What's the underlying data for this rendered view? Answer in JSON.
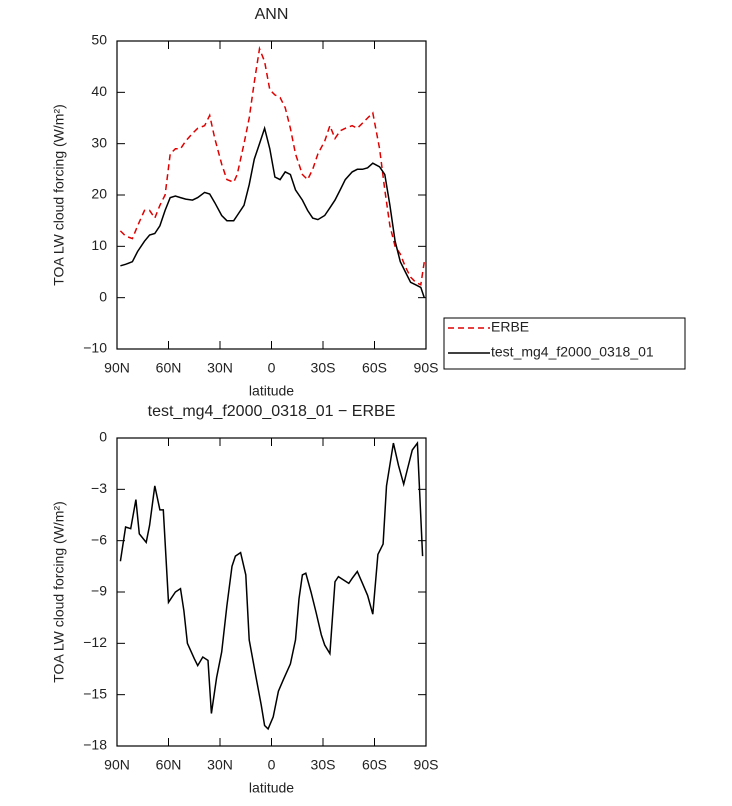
{
  "chart_data": [
    {
      "type": "line",
      "title": "ANN",
      "xlabel": "latitude",
      "ylabel": "TOA LW cloud forcing (W/m²)",
      "x": [
        88,
        85,
        81,
        78,
        74,
        71,
        68,
        65,
        62,
        59,
        56,
        53,
        50,
        46,
        43,
        39,
        36,
        33,
        29,
        26,
        22,
        20,
        16,
        13,
        10,
        7,
        4,
        1,
        -2,
        -5,
        -8,
        -11,
        -14,
        -18,
        -21,
        -24,
        -27,
        -31,
        -34,
        -37,
        -40,
        -43,
        -47,
        -50,
        -53,
        -56,
        -59,
        -63,
        -66,
        -69,
        -72,
        -75,
        -78,
        -81,
        -84,
        -87,
        -89
      ],
      "series": [
        {
          "name": "ERBE",
          "color": "#e00000",
          "line_style": "dashed",
          "values": [
            13,
            12,
            11.5,
            14,
            17,
            17,
            15.5,
            18,
            20,
            28,
            29,
            29,
            30.5,
            32,
            33,
            33.5,
            35.5,
            31,
            26,
            23,
            22.5,
            24,
            30,
            35,
            42,
            48.5,
            46,
            40.5,
            39.5,
            39,
            37,
            33,
            28,
            24,
            23,
            25,
            28,
            30.5,
            33.5,
            31,
            32.5,
            33,
            33.5,
            33,
            34,
            35,
            36,
            29,
            21,
            14,
            10,
            8.5,
            6,
            4,
            3,
            2.5,
            7
          ]
        },
        {
          "name": "test_mg4_f2000_0318_01",
          "color": "#000000",
          "line_style": "solid",
          "values": [
            6.2,
            6.5,
            7,
            9,
            11,
            12.2,
            12.5,
            14,
            17,
            19.5,
            19.8,
            19.5,
            19.2,
            19,
            19.5,
            20.5,
            20.2,
            18.5,
            16,
            15,
            15,
            16,
            18,
            22,
            27,
            30,
            33,
            29,
            23.5,
            23,
            24.5,
            24,
            21,
            19,
            17,
            15.5,
            15.2,
            16,
            17.5,
            19,
            21,
            23,
            24.5,
            25,
            25,
            25.3,
            26.2,
            25.5,
            24,
            18,
            11,
            7,
            5,
            3,
            2.5,
            2,
            0
          ]
        }
      ],
      "xlim": [
        90,
        -90
      ],
      "xticks": [
        {
          "value": 90,
          "label": "90N"
        },
        {
          "value": 60,
          "label": "60N"
        },
        {
          "value": 30,
          "label": "30N"
        },
        0,
        {
          "value": -30,
          "label": "30S"
        },
        {
          "value": -60,
          "label": "60S"
        },
        {
          "value": -90,
          "label": "90S"
        }
      ],
      "ylim": [
        -10,
        50
      ],
      "yticks": [
        {
          "value": -10,
          "label": "−10"
        },
        0,
        10,
        20,
        30,
        40,
        50
      ],
      "legend_position": "right"
    },
    {
      "type": "line",
      "title": "test_mg4_f2000_0318_01 − ERBE",
      "xlabel": "latitude",
      "ylabel": "TOA LW cloud forcing (W/m²)",
      "x": [
        88,
        85,
        82,
        79,
        77,
        73,
        71,
        68,
        65,
        63,
        60,
        56,
        53,
        51,
        49,
        45,
        43,
        40,
        37,
        35,
        32,
        29,
        26,
        23,
        21,
        18,
        15,
        13,
        9,
        6,
        4,
        2,
        -1,
        -4,
        -7,
        -11,
        -14,
        -16,
        -18,
        -20,
        -23,
        -26,
        -29,
        -31,
        -34,
        -37,
        -39,
        -42,
        -45,
        -47,
        -50,
        -53,
        -56,
        -59,
        -62,
        -65,
        -67,
        -71,
        -74,
        -77,
        -79,
        -82,
        -85,
        -88
      ],
      "values": [
        -7.2,
        -5.2,
        -5.3,
        -3.6,
        -5.6,
        -6.1,
        -5.1,
        -2.8,
        -4.2,
        -4.2,
        -9.6,
        -9,
        -8.8,
        -10.1,
        -12,
        -12.9,
        -13.3,
        -12.8,
        -13,
        -16.1,
        -14,
        -12.5,
        -9.8,
        -7.5,
        -6.9,
        -6.7,
        -8,
        -11.8,
        -14,
        -15.6,
        -16.8,
        -17,
        -16.3,
        -14.8,
        -14.1,
        -13.2,
        -11.8,
        -9.4,
        -8,
        -7.9,
        -9,
        -10.2,
        -11.5,
        -12.1,
        -12.6,
        -8.4,
        -8.1,
        -8.3,
        -8.5,
        -8.2,
        -7.8,
        -8.5,
        -9.2,
        -10.3,
        -6.8,
        -6.2,
        -2.8,
        -0.3,
        -1.6,
        -2.7,
        -1.9,
        -0.7,
        -0.3,
        -6.9
      ],
      "color": "#000000",
      "xlim": [
        90,
        -90
      ],
      "xticks": [
        {
          "value": 90,
          "label": "90N"
        },
        {
          "value": 60,
          "label": "60N"
        },
        {
          "value": 30,
          "label": "30N"
        },
        0,
        {
          "value": -30,
          "label": "30S"
        },
        {
          "value": -60,
          "label": "60S"
        },
        {
          "value": -90,
          "label": "90S"
        }
      ],
      "ylim": [
        -18,
        0
      ],
      "yticks": [
        {
          "value": -18,
          "label": "−18"
        },
        {
          "value": -15,
          "label": "−15"
        },
        {
          "value": -12,
          "label": "−12"
        },
        {
          "value": -9,
          "label": "−9"
        },
        {
          "value": -6,
          "label": "−6"
        },
        {
          "value": -3,
          "label": "−3"
        },
        0
      ]
    }
  ]
}
